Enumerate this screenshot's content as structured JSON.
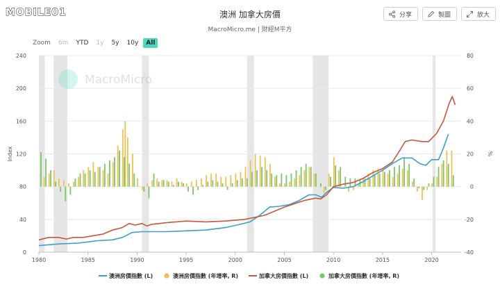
{
  "logo": {
    "text": "MOBILE01"
  },
  "header": {
    "title": "澳洲 加拿大房價",
    "subtitle": "MacroMicro.me | 財經M平方"
  },
  "actions": [
    {
      "label": "分享",
      "icon": "share-icon"
    },
    {
      "label": "製圖",
      "icon": "edit-icon"
    },
    {
      "label": "放大",
      "icon": "expand-icon"
    }
  ],
  "zoom": {
    "label": "Zoom",
    "options": [
      {
        "label": "6m",
        "state": "disabled"
      },
      {
        "label": "YTD",
        "state": "normal"
      },
      {
        "label": "1y",
        "state": "disabled"
      },
      {
        "label": "5y",
        "state": "normal"
      },
      {
        "label": "10y",
        "state": "normal"
      },
      {
        "label": "All",
        "state": "active"
      }
    ]
  },
  "watermark": "MacroMicro",
  "chart_data": {
    "type": "line",
    "xlim": [
      1980,
      2023
    ],
    "x_ticks": [
      1980,
      1985,
      1990,
      1995,
      2000,
      2005,
      2010,
      2015,
      2020
    ],
    "left_axis": {
      "label": "Index",
      "ylim": [
        0,
        240
      ],
      "ticks": [
        0,
        40,
        80,
        120,
        160,
        200,
        240
      ]
    },
    "right_axis": {
      "label": "%",
      "ylim": [
        -40,
        80
      ],
      "ticks": [
        -40,
        -20,
        0,
        20,
        40,
        60,
        80
      ]
    },
    "grid": true,
    "legend_position": "bottom",
    "shaded_periods": [
      [
        1980.0,
        1980.6
      ],
      [
        1981.5,
        1982.9
      ],
      [
        1990.5,
        1991.2
      ],
      [
        2001.2,
        2001.9
      ],
      [
        2007.9,
        2009.5
      ],
      [
        2020.1,
        2020.4
      ]
    ],
    "colors": {
      "au_index": "#3aa0c8",
      "au_yoy": "#f0c050",
      "ca_index": "#c8553d",
      "ca_yoy": "#7dc46a",
      "shade": "#e6e6e6"
    },
    "series": [
      {
        "name": "澳洲房價指數 (L)",
        "key": "au_index",
        "kind": "line",
        "axis": "left",
        "x": [
          1980,
          1982,
          1984,
          1986,
          1987.5,
          1988.5,
          1989.5,
          1990.5,
          1991,
          1993,
          1995,
          1997,
          1999,
          2000.5,
          2001.5,
          2002.5,
          2003.5,
          2004.5,
          2005.5,
          2006.5,
          2007.5,
          2008.2,
          2008.8,
          2009.3,
          2010,
          2011,
          2012,
          2013,
          2014,
          2015,
          2016,
          2017,
          2018,
          2018.8,
          2019.4,
          2020,
          2020.7,
          2021.2,
          2021.7
        ],
        "values": [
          8,
          10,
          11,
          14,
          15,
          18,
          24,
          25,
          25,
          25,
          26,
          27,
          30,
          34,
          37,
          45,
          55,
          56,
          58,
          63,
          70,
          70,
          67,
          73,
          79,
          78,
          80,
          86,
          93,
          100,
          108,
          115,
          115,
          108,
          106,
          113,
          113,
          127,
          144
        ]
      },
      {
        "name": "澳洲房價指數 (年增率, R)",
        "key": "au_yoy",
        "kind": "bar",
        "axis": "right",
        "x": [
          1980.5,
          1981.0,
          1981.5,
          1982.0,
          1982.5,
          1983.0,
          1983.5,
          1984.0,
          1984.5,
          1985.0,
          1985.5,
          1986.0,
          1986.5,
          1987.0,
          1987.5,
          1988.0,
          1988.5,
          1988.75,
          1989.0,
          1989.5,
          1990.0,
          1990.5,
          1991.0,
          1991.5,
          1992.0,
          1992.5,
          1993.0,
          1993.5,
          1994.0,
          1994.5,
          1995.0,
          1995.5,
          1996.0,
          1996.5,
          1997.0,
          1997.5,
          1998.0,
          1998.5,
          1999.0,
          1999.5,
          2000.0,
          2000.5,
          2001.0,
          2001.5,
          2002.0,
          2002.5,
          2003.0,
          2003.5,
          2004.0,
          2004.5,
          2005.0,
          2005.5,
          2006.0,
          2006.5,
          2007.0,
          2007.5,
          2008.0,
          2008.5,
          2009.0,
          2009.5,
          2010.0,
          2010.5,
          2011.0,
          2011.5,
          2012.0,
          2012.5,
          2013.0,
          2013.5,
          2014.0,
          2014.5,
          2015.0,
          2015.5,
          2016.0,
          2016.5,
          2017.0,
          2017.5,
          2018.0,
          2018.5,
          2019.0,
          2019.5,
          2020.0,
          2020.5,
          2021.0,
          2021.5,
          2022.0
        ],
        "values": [
          6,
          8,
          10,
          5,
          4,
          2,
          3,
          6,
          10,
          12,
          15,
          12,
          10,
          8,
          15,
          25,
          35,
          40,
          30,
          20,
          5,
          -2,
          2,
          4,
          5,
          4,
          4,
          3,
          5,
          3,
          2,
          3,
          4,
          5,
          7,
          8,
          8,
          6,
          6,
          7,
          8,
          9,
          12,
          16,
          20,
          19,
          18,
          14,
          6,
          2,
          2,
          3,
          5,
          7,
          10,
          12,
          8,
          0,
          -4,
          8,
          18,
          10,
          0,
          -3,
          -2,
          2,
          5,
          8,
          10,
          11,
          10,
          8,
          6,
          8,
          11,
          10,
          3,
          -3,
          -8,
          -2,
          2,
          6,
          14,
          22,
          22
        ]
      },
      {
        "name": "加拿大房價指數 (L)",
        "key": "ca_index",
        "kind": "line",
        "axis": "left",
        "x": [
          1980,
          1981,
          1982,
          1982.8,
          1983.5,
          1984.5,
          1985.5,
          1986.5,
          1987.5,
          1988.5,
          1989.2,
          1989.8,
          1990.5,
          1991,
          1991.5,
          1993,
          1995,
          1997,
          1999,
          2001,
          2003,
          2005,
          2007,
          2008.2,
          2008.7,
          2009.3,
          2010,
          2011,
          2012,
          2013,
          2014,
          2015,
          2016,
          2016.8,
          2017.3,
          2018,
          2019,
          2019.7,
          2020.5,
          2021.2,
          2021.8,
          2022.1,
          2022.4
        ],
        "values": [
          15,
          18,
          18,
          16,
          18,
          18,
          20,
          22,
          27,
          30,
          35,
          33,
          35,
          32,
          34,
          36,
          38,
          37,
          38,
          40,
          45,
          55,
          63,
          66,
          65,
          70,
          80,
          83,
          85,
          90,
          97,
          102,
          110,
          125,
          135,
          137,
          135,
          135,
          145,
          160,
          182,
          190,
          180
        ]
      },
      {
        "name": "加拿大房價指數 (年增率, R)",
        "key": "ca_yoy",
        "kind": "bar",
        "axis": "right",
        "x": [
          1980.25,
          1980.75,
          1981.25,
          1981.75,
          1982.25,
          1982.75,
          1983.25,
          1983.75,
          1984.25,
          1984.75,
          1985.25,
          1985.75,
          1986.25,
          1986.75,
          1987.25,
          1987.75,
          1988.25,
          1988.75,
          1989.25,
          1989.75,
          1990.25,
          1990.75,
          1991.25,
          1991.75,
          1992.25,
          1992.75,
          1993.25,
          1993.75,
          1994.25,
          1994.75,
          1995.25,
          1995.75,
          1996.25,
          1996.75,
          1997.25,
          1997.75,
          1998.25,
          1998.75,
          1999.25,
          1999.75,
          2000.25,
          2000.75,
          2001.25,
          2001.75,
          2002.25,
          2002.75,
          2003.25,
          2003.75,
          2004.25,
          2004.75,
          2005.25,
          2005.75,
          2006.25,
          2006.75,
          2007.25,
          2007.75,
          2008.25,
          2008.75,
          2009.25,
          2009.75,
          2010.25,
          2010.75,
          2011.25,
          2011.75,
          2012.25,
          2012.75,
          2013.25,
          2013.75,
          2014.25,
          2014.75,
          2015.25,
          2015.75,
          2016.25,
          2016.75,
          2017.25,
          2017.75,
          2018.25,
          2018.75,
          2019.25,
          2019.75,
          2020.25,
          2020.75,
          2021.25,
          2021.75,
          2022.25
        ],
        "values": [
          21,
          17,
          10,
          3,
          -3,
          -9,
          -5,
          5,
          8,
          8,
          10,
          9,
          12,
          14,
          16,
          18,
          22,
          18,
          14,
          8,
          0,
          -3,
          -7,
          8,
          3,
          4,
          3,
          1,
          3,
          2,
          -3,
          -5,
          -2,
          1,
          3,
          4,
          3,
          2,
          -2,
          2,
          4,
          5,
          5,
          9,
          10,
          12,
          10,
          8,
          7,
          8,
          7,
          8,
          10,
          12,
          14,
          12,
          8,
          2,
          -2,
          6,
          13,
          12,
          6,
          5,
          5,
          4,
          5,
          5,
          7,
          8,
          9,
          10,
          12,
          13,
          18,
          14,
          5,
          -1,
          -2,
          2,
          6,
          12,
          16,
          14,
          7
        ]
      }
    ]
  }
}
